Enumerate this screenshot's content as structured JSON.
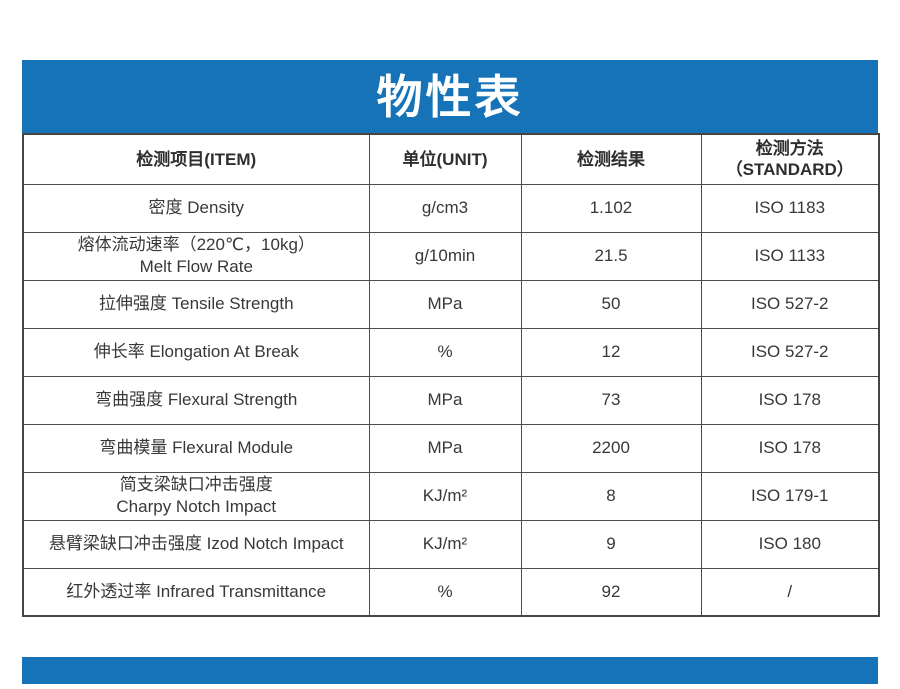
{
  "title": "物性表",
  "colors": {
    "accent_blue": "#1673b8",
    "border_gray": "#4d4d4d",
    "text_dark": "#383838"
  },
  "table": {
    "headers": {
      "item": "检测项目(ITEM)",
      "unit": "单位(UNIT)",
      "result": "检测结果",
      "standard_line1": "检测方法",
      "standard_line2": "（STANDARD）"
    },
    "rows": [
      {
        "item": "密度 Density",
        "unit": "g/cm3",
        "result": "1.102",
        "standard": "ISO 1183"
      },
      {
        "item": "熔体流动速率（220℃，10kg）",
        "item2": "Melt Flow Rate",
        "unit": "g/10min",
        "result": "21.5",
        "standard": "ISO 1133"
      },
      {
        "item": "拉伸强度 Tensile Strength",
        "unit": "MPa",
        "result": "50",
        "standard": "ISO 527-2"
      },
      {
        "item": "伸长率 Elongation At Break",
        "unit": "%",
        "result": "12",
        "standard": "ISO 527-2"
      },
      {
        "item": "弯曲强度 Flexural Strength",
        "unit": "MPa",
        "result": "73",
        "standard": "ISO 178"
      },
      {
        "item": "弯曲模量 Flexural Module",
        "unit": "MPa",
        "result": "2200",
        "standard": "ISO 178"
      },
      {
        "item": "简支梁缺口冲击强度",
        "item2": "Charpy Notch Impact",
        "unit": "KJ/m²",
        "result": "8",
        "standard": "ISO 179-1"
      },
      {
        "item": "悬臂梁缺口冲击强度 Izod Notch Impact",
        "unit": "KJ/m²",
        "result": "9",
        "standard": "ISO 180"
      },
      {
        "item": "红外透过率 Infrared Transmittance",
        "unit": "%",
        "result": "92",
        "standard": "/"
      }
    ]
  }
}
